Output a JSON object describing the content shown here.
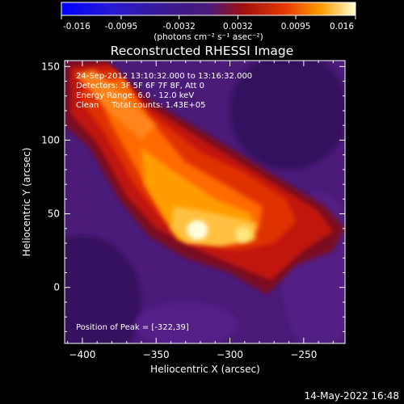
{
  "chart_data": {
    "type": "heatmap",
    "title": "Reconstructed RHESSI Image",
    "xlabel": "Heliocentric X (arcsec)",
    "ylabel": "Heliocentric Y (arcsec)",
    "xlim": [
      -412,
      -222
    ],
    "ylim": [
      -38,
      154
    ],
    "x_ticks": [
      -400,
      -350,
      -300,
      -250
    ],
    "y_ticks": [
      0,
      50,
      100,
      150
    ],
    "annotations": [
      "24-Sep-2012 13:10:32.000 to 13:16:32.000",
      "Detectors: 3F 5F 6F 7F 8F, Att 0",
      "Energy Range: 6.0 - 12.0 keV",
      "Clean     Total counts: 1.43E+05"
    ],
    "peak_label": "Position of Peak = [-322,39]",
    "peak": [
      -322,
      39
    ],
    "secondary_peak": [
      -291,
      36
    ],
    "colorbar": {
      "min": -0.016,
      "max": 0.016,
      "tick_labels": [
        "-0.016",
        "-0.0095",
        "-0.0032",
        "0.0032",
        "0.0095",
        "0.016"
      ],
      "tick_values": [
        -0.016,
        -0.0095,
        -0.0032,
        0.0032,
        0.0095,
        0.016
      ],
      "unit_label": "(photons cm⁻² s⁻¹ asec⁻²)"
    },
    "colors": {
      "negative": "#0000ff",
      "background": "#4a1b78",
      "mid": "#cc2200",
      "high": "#ff8c00",
      "peak": "#ffffe0"
    }
  },
  "footer": {
    "timestamp": "14-May-2022 16:48"
  }
}
